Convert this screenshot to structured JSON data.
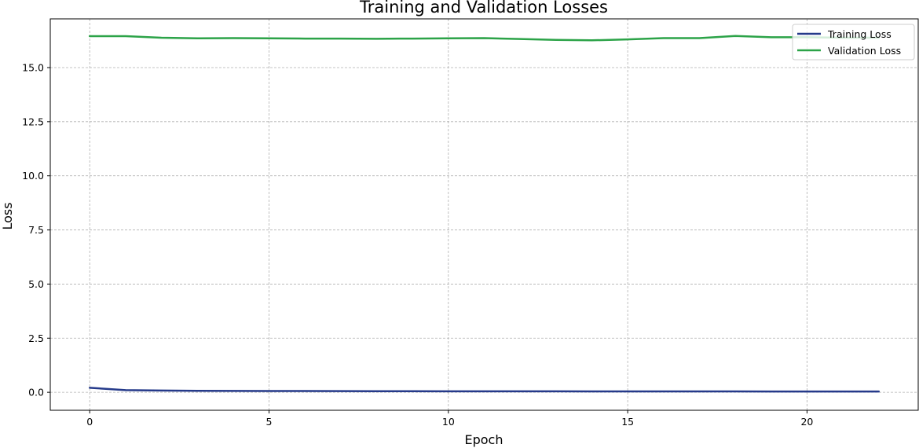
{
  "chart_data": {
    "type": "line",
    "title": "Training and Validation Losses",
    "xlabel": "Epoch",
    "ylabel": "Loss",
    "xlim": [
      -1.1,
      23.1
    ],
    "ylim": [
      -0.83,
      17.25
    ],
    "xticks": [
      0,
      5,
      10,
      15,
      20
    ],
    "xtick_labels": [
      "0",
      "5",
      "10",
      "15",
      "20"
    ],
    "yticks": [
      0.0,
      2.5,
      5.0,
      7.5,
      10.0,
      12.5,
      15.0
    ],
    "ytick_labels": [
      "0.0",
      "2.5",
      "5.0",
      "7.5",
      "10.0",
      "12.5",
      "15.0"
    ],
    "grid": true,
    "legend_position": "top-right",
    "x": [
      0,
      1,
      2,
      3,
      4,
      5,
      6,
      7,
      8,
      9,
      10,
      11,
      12,
      13,
      14,
      15,
      16,
      17,
      18,
      19,
      20,
      21,
      22
    ],
    "series": [
      {
        "name": "Training Loss",
        "color": "#253a8a",
        "values": [
          0.21,
          0.1,
          0.08,
          0.07,
          0.065,
          0.06,
          0.058,
          0.055,
          0.052,
          0.05,
          0.048,
          0.046,
          0.045,
          0.044,
          0.043,
          0.042,
          0.041,
          0.04,
          0.039,
          0.038,
          0.037,
          0.036,
          0.035
        ]
      },
      {
        "name": "Validation Loss",
        "color": "#2ca348",
        "values": [
          16.45,
          16.45,
          16.38,
          16.35,
          16.36,
          16.35,
          16.34,
          16.34,
          16.33,
          16.34,
          16.35,
          16.36,
          16.32,
          16.28,
          16.26,
          16.3,
          16.36,
          16.36,
          16.46,
          16.4,
          16.4,
          16.38,
          16.38
        ]
      }
    ]
  }
}
